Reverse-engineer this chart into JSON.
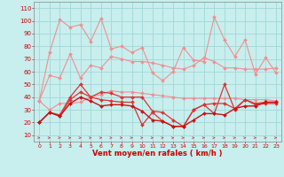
{
  "x": [
    0,
    1,
    2,
    3,
    4,
    5,
    6,
    7,
    8,
    9,
    10,
    11,
    12,
    13,
    14,
    15,
    16,
    17,
    18,
    19,
    20,
    21,
    22,
    23
  ],
  "series": [
    {
      "color": "#f09090",
      "linewidth": 0.8,
      "markersize": 2.0,
      "values": [
        37,
        75,
        101,
        95,
        97,
        84,
        102,
        78,
        80,
        75,
        79,
        59,
        53,
        60,
        79,
        69,
        68,
        103,
        85,
        72,
        85,
        58,
        71,
        59
      ]
    },
    {
      "color": "#f09090",
      "linewidth": 0.8,
      "markersize": 2.0,
      "values": [
        37,
        57,
        55,
        74,
        55,
        65,
        63,
        72,
        70,
        68,
        68,
        67,
        65,
        63,
        62,
        65,
        71,
        68,
        63,
        63,
        62,
        62,
        62,
        63
      ]
    },
    {
      "color": "#f09090",
      "linewidth": 0.8,
      "markersize": 2.0,
      "values": [
        37,
        30,
        35,
        35,
        36,
        40,
        42,
        45,
        44,
        44,
        43,
        42,
        41,
        40,
        39,
        39,
        39,
        39,
        39,
        39,
        38,
        38,
        38,
        37
      ]
    },
    {
      "color": "#dd3333",
      "linewidth": 0.9,
      "markersize": 2.0,
      "values": [
        20,
        28,
        26,
        40,
        50,
        40,
        44,
        43,
        40,
        40,
        40,
        29,
        28,
        22,
        17,
        30,
        34,
        27,
        50,
        30,
        38,
        35,
        36,
        36
      ]
    },
    {
      "color": "#dd3333",
      "linewidth": 0.9,
      "markersize": 2.0,
      "values": [
        20,
        28,
        25,
        38,
        44,
        40,
        38,
        37,
        36,
        36,
        18,
        28,
        21,
        17,
        17,
        30,
        34,
        35,
        35,
        31,
        38,
        34,
        35,
        35
      ]
    },
    {
      "color": "#cc1111",
      "linewidth": 1.0,
      "markersize": 2.0,
      "values": [
        20,
        28,
        25,
        35,
        40,
        37,
        33,
        34,
        34,
        33,
        29,
        22,
        21,
        17,
        17,
        22,
        27,
        27,
        26,
        31,
        33,
        33,
        36,
        36
      ]
    }
  ],
  "xlabel": "Vent moyen/en rafales ( km/h )",
  "xlim": [
    -0.5,
    23.5
  ],
  "ylim": [
    5,
    115
  ],
  "yticks": [
    10,
    20,
    30,
    40,
    50,
    60,
    70,
    80,
    90,
    100,
    110
  ],
  "xticks": [
    0,
    1,
    2,
    3,
    4,
    5,
    6,
    7,
    8,
    9,
    10,
    11,
    12,
    13,
    14,
    15,
    16,
    17,
    18,
    19,
    20,
    21,
    22,
    23
  ],
  "bg_color": "#c8eeee",
  "grid_color": "#a0d8d8",
  "xlabel_color": "#cc0000",
  "tick_color": "#cc0000",
  "arrow_color": "#cc4444"
}
